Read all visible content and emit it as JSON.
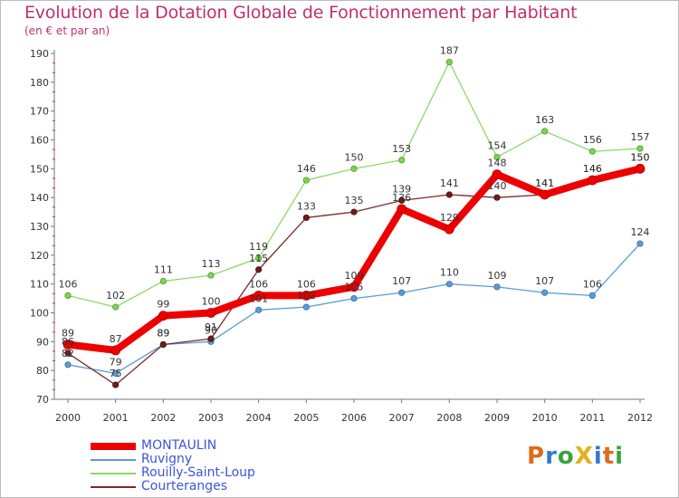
{
  "title": "Evolution de la Dotation Globale de Fonctionnement par Habitant",
  "subtitle": "(en € et par an)",
  "logo": {
    "text": "ProXiti",
    "colors": [
      "#e06a1c",
      "#2f7bd6",
      "#3ba33b",
      "#e0b21c",
      "#2f7bd6",
      "#e06a1c",
      "#3ba33b"
    ]
  },
  "chart_data": {
    "type": "line",
    "x": [
      "2000",
      "2001",
      "2002",
      "2003",
      "2004",
      "2005",
      "2006",
      "2007",
      "2008",
      "2009",
      "2010",
      "2011",
      "2012"
    ],
    "ylim": [
      70,
      190
    ],
    "yticks": [
      70,
      80,
      90,
      100,
      110,
      120,
      130,
      140,
      150,
      160,
      170,
      180,
      190
    ],
    "grid": false,
    "legend_position": "bottom-left",
    "series": [
      {
        "name": "MONTAULIN",
        "color": "#ee0000",
        "values": [
          89,
          87,
          99,
          100,
          106,
          106,
          109,
          136,
          129,
          148,
          141,
          146,
          150
        ],
        "labels": [
          "89",
          "87",
          "99",
          "100",
          "106",
          "106",
          "109",
          "136",
          "129",
          "148",
          "141",
          "146",
          "150"
        ]
      },
      {
        "name": "Ruvigny",
        "color": "#5b9bd5",
        "values": [
          82,
          79,
          89,
          90,
          101,
          102,
          105,
          107,
          110,
          109,
          107,
          106,
          124
        ],
        "labels": [
          "82",
          "79",
          "89",
          "90",
          "101",
          "102",
          "105",
          "107",
          "110",
          "109",
          "107",
          "106",
          "124"
        ]
      },
      {
        "name": "Rouilly-Saint-Loup",
        "color": "#8ed86b",
        "values": [
          106,
          102,
          111,
          113,
          119,
          146,
          150,
          153,
          187,
          154,
          163,
          156,
          157
        ],
        "labels": [
          "106",
          "102",
          "111",
          "113",
          "119",
          "146",
          "150",
          "153",
          "187",
          "154",
          "163",
          "156",
          "157"
        ]
      },
      {
        "name": "Courteranges",
        "color": "#7a2a2a",
        "values": [
          86,
          75,
          89,
          91,
          115,
          133,
          135,
          139,
          141,
          140,
          141,
          146,
          150
        ],
        "labels": [
          "86",
          "75",
          "89",
          "91",
          "115",
          "133",
          "135",
          "139",
          "141",
          "140",
          "141",
          "146",
          "150"
        ]
      }
    ]
  }
}
